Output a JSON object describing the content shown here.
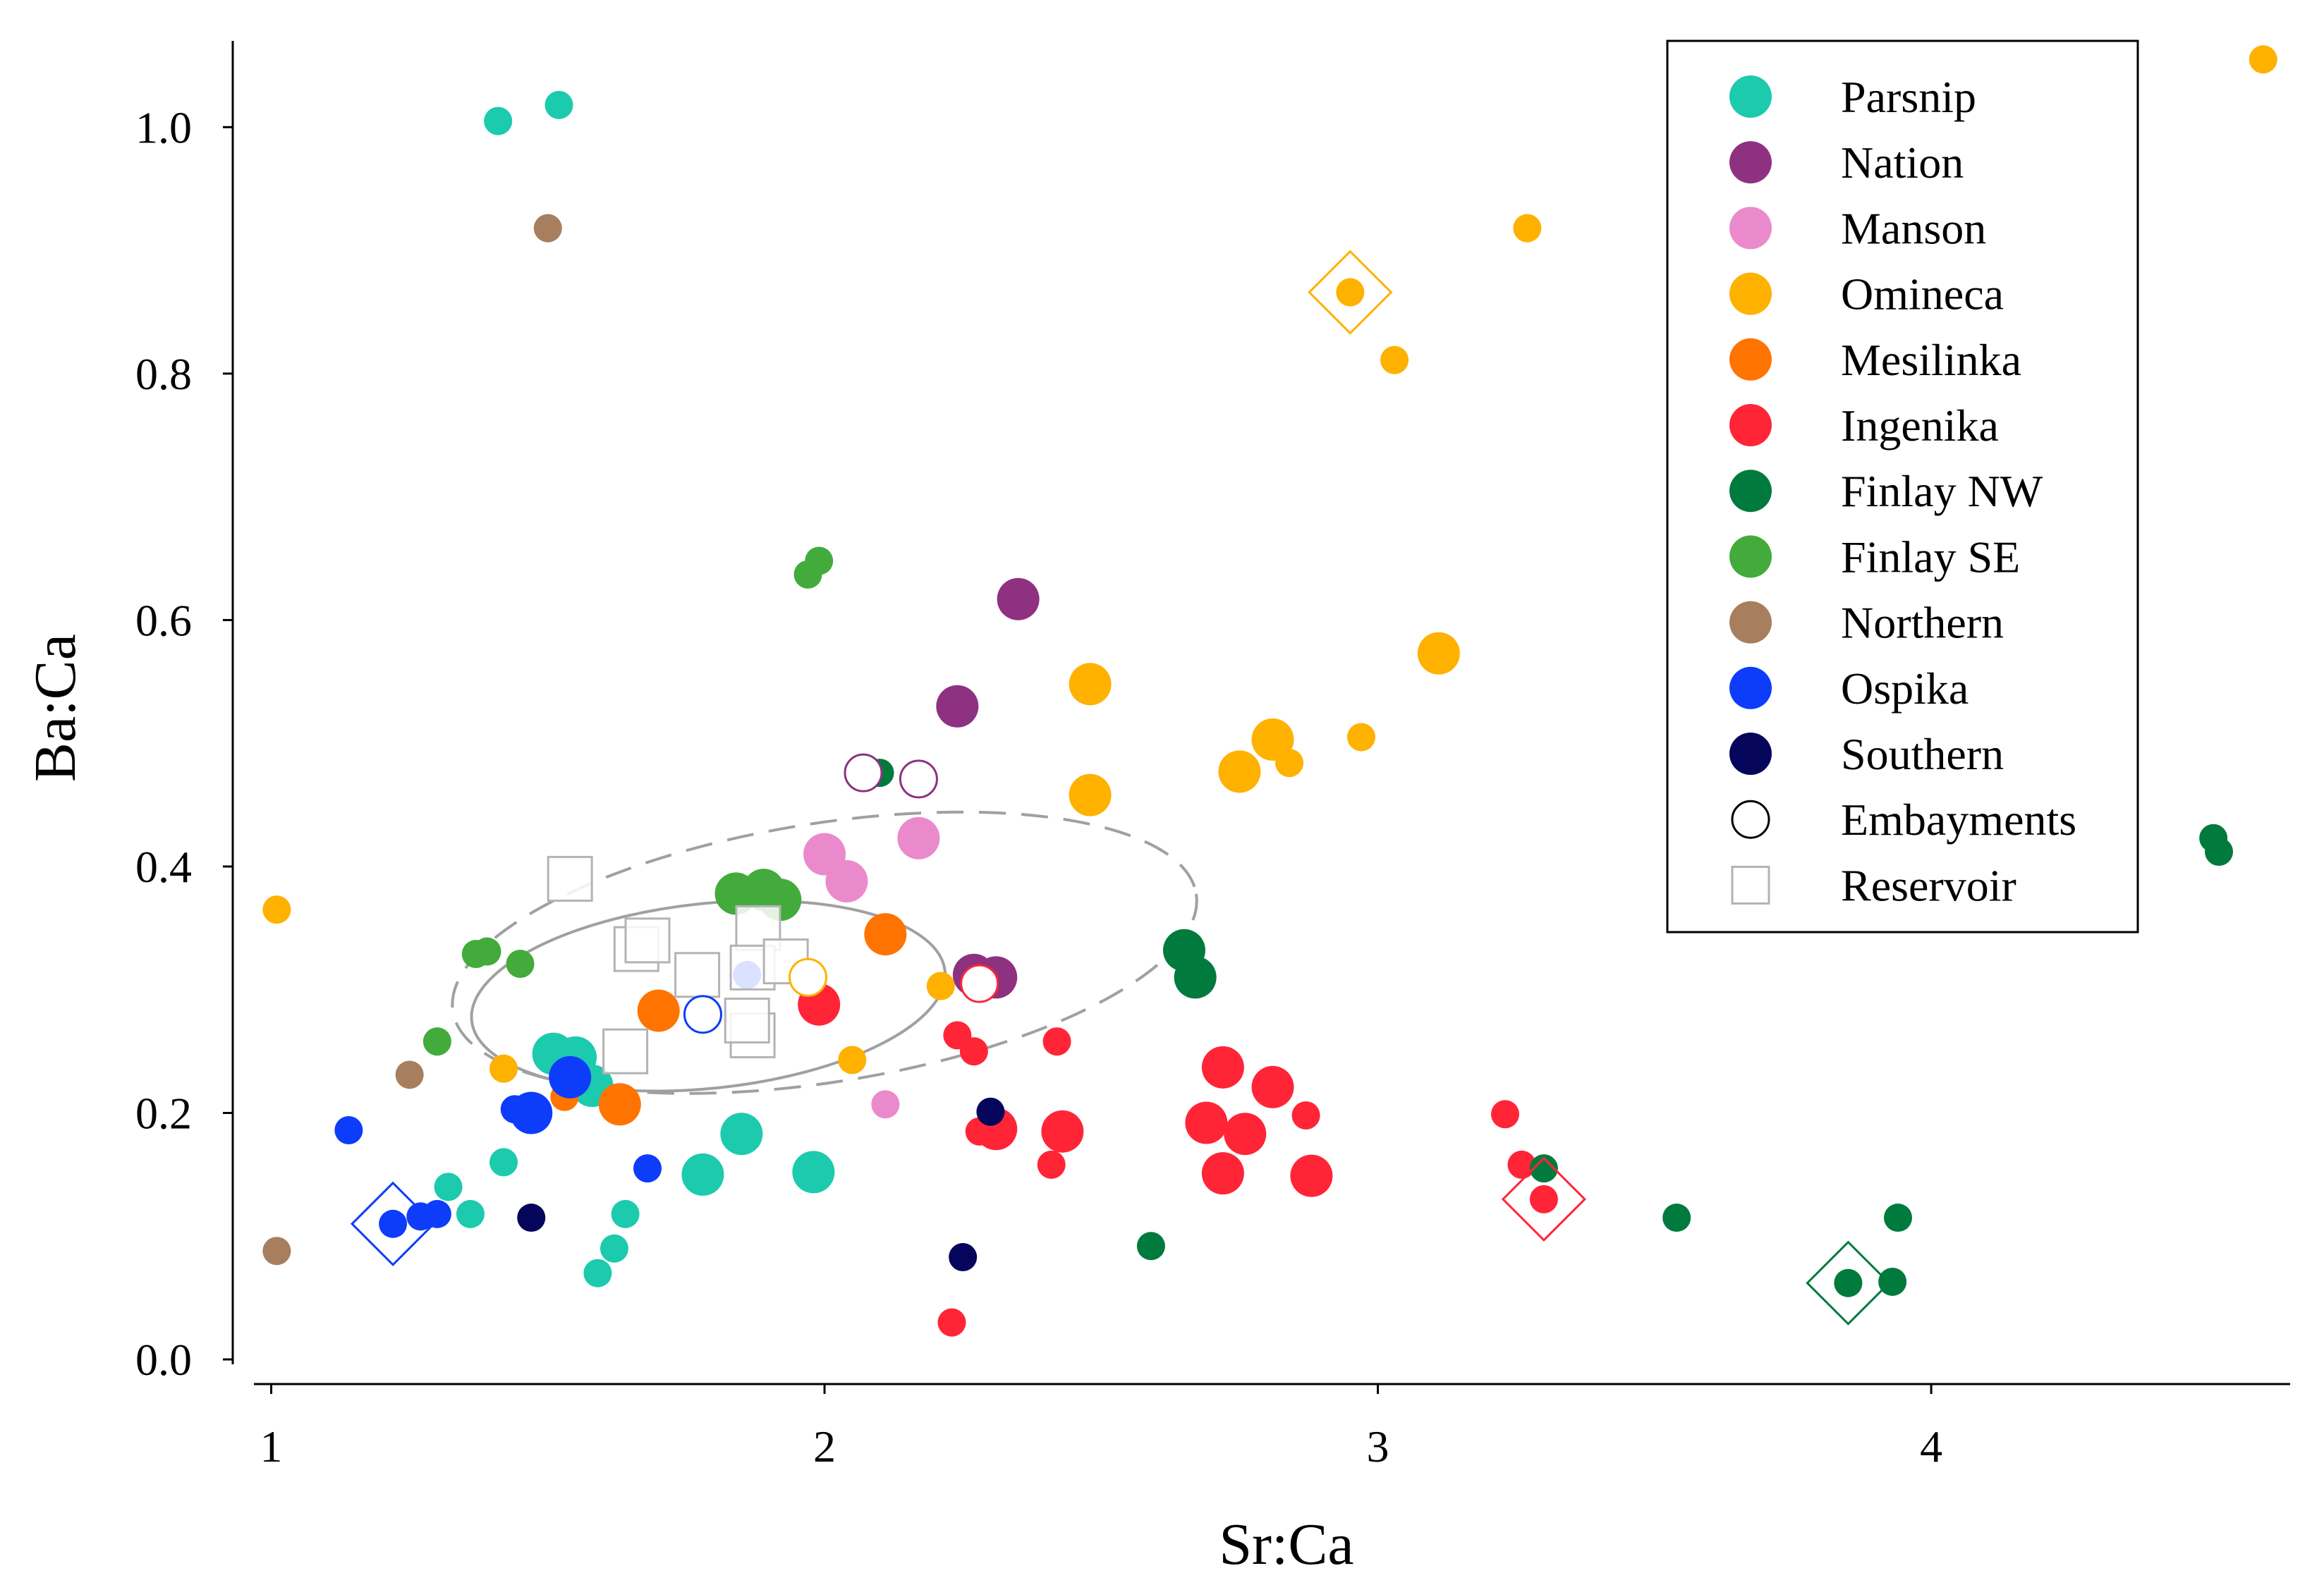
{
  "chart_data": {
    "type": "scatter",
    "xlabel": "Sr:Ca",
    "ylabel": "Ba:Ca",
    "xlim": [
      0.97,
      4.65
    ],
    "ylim": [
      -0.02,
      1.07
    ],
    "xticks": [
      1,
      2,
      3,
      4
    ],
    "yticks": [
      0.0,
      0.2,
      0.4,
      0.6,
      0.8,
      1.0
    ],
    "xtick_labels": [
      "1",
      "2",
      "3",
      "4"
    ],
    "ytick_labels": [
      "0.0",
      "0.2",
      "0.4",
      "0.6",
      "0.8",
      "1.0"
    ],
    "legend_position": "top-right",
    "series": [
      {
        "name": "Parsnip",
        "color": "#1ccaae",
        "points": [
          [
            1.41,
            1.005,
            "m"
          ],
          [
            1.52,
            1.018,
            "m"
          ],
          [
            1.51,
            0.248,
            "l"
          ],
          [
            1.55,
            0.245,
            "l"
          ],
          [
            1.58,
            0.222,
            "l"
          ],
          [
            1.42,
            0.16,
            "m"
          ],
          [
            1.32,
            0.14,
            "m"
          ],
          [
            1.36,
            0.118,
            "m"
          ],
          [
            1.64,
            0.118,
            "m"
          ],
          [
            1.62,
            0.09,
            "m"
          ],
          [
            1.59,
            0.07,
            "m"
          ],
          [
            1.78,
            0.15,
            "l"
          ],
          [
            1.85,
            0.183,
            "l"
          ],
          [
            1.98,
            0.152,
            "l"
          ]
        ]
      },
      {
        "name": "Nation",
        "color": "#8e3180",
        "points": [
          [
            2.35,
            0.617,
            "l"
          ],
          [
            2.24,
            0.53,
            "l"
          ],
          [
            2.27,
            0.312,
            "l"
          ],
          [
            2.31,
            0.31,
            "l"
          ]
        ]
      },
      {
        "name": "Manson",
        "color": "#eb89cd",
        "points": [
          [
            2.0,
            0.41,
            "l"
          ],
          [
            2.04,
            0.388,
            "l"
          ],
          [
            2.17,
            0.423,
            "l"
          ],
          [
            2.11,
            0.207,
            "m"
          ]
        ]
      },
      {
        "name": "Omineca",
        "color": "#ffb100",
        "points": [
          [
            4.6,
            1.055,
            "m"
          ],
          [
            3.27,
            0.918,
            "m"
          ],
          [
            2.95,
            0.866,
            "m"
          ],
          [
            3.03,
            0.811,
            "m"
          ],
          [
            3.11,
            0.573,
            "l"
          ],
          [
            2.48,
            0.548,
            "l"
          ],
          [
            2.97,
            0.505,
            "m"
          ],
          [
            2.81,
            0.503,
            "l"
          ],
          [
            2.84,
            0.484,
            "m"
          ],
          [
            2.75,
            0.477,
            "l"
          ],
          [
            2.48,
            0.458,
            "l"
          ],
          [
            1.01,
            0.365,
            "m"
          ],
          [
            2.21,
            0.303,
            "m"
          ],
          [
            1.42,
            0.236,
            "m"
          ],
          [
            2.05,
            0.243,
            "m"
          ]
        ]
      },
      {
        "name": "Mesilinka",
        "color": "#ff7300",
        "points": [
          [
            2.11,
            0.345,
            "l"
          ],
          [
            1.7,
            0.283,
            "l"
          ],
          [
            1.63,
            0.207,
            "l"
          ],
          [
            1.53,
            0.213,
            "m"
          ]
        ]
      },
      {
        "name": "Ingenika",
        "color": "#ff2537",
        "points": [
          [
            1.99,
            0.288,
            "l"
          ],
          [
            2.24,
            0.263,
            "m"
          ],
          [
            2.27,
            0.25,
            "m"
          ],
          [
            2.42,
            0.258,
            "m"
          ],
          [
            2.28,
            0.185,
            "m"
          ],
          [
            2.31,
            0.187,
            "l"
          ],
          [
            2.43,
            0.185,
            "l"
          ],
          [
            2.41,
            0.158,
            "m"
          ],
          [
            2.23,
            0.03,
            "m"
          ],
          [
            2.72,
            0.237,
            "l"
          ],
          [
            2.69,
            0.192,
            "l"
          ],
          [
            2.76,
            0.183,
            "l"
          ],
          [
            2.81,
            0.221,
            "l"
          ],
          [
            2.87,
            0.198,
            "m"
          ],
          [
            2.72,
            0.151,
            "l"
          ],
          [
            2.88,
            0.149,
            "l"
          ],
          [
            3.23,
            0.199,
            "m"
          ],
          [
            3.26,
            0.158,
            "m"
          ],
          [
            3.3,
            0.13,
            "m"
          ]
        ]
      },
      {
        "name": "Finlay NW",
        "color": "#007a3d",
        "points": [
          [
            2.1,
            0.476,
            "m"
          ],
          [
            2.65,
            0.332,
            "l"
          ],
          [
            2.67,
            0.31,
            "l"
          ],
          [
            2.59,
            0.092,
            "m"
          ],
          [
            3.3,
            0.155,
            "m"
          ],
          [
            3.54,
            0.115,
            "m"
          ],
          [
            3.85,
            0.062,
            "m"
          ],
          [
            3.93,
            0.063,
            "m"
          ],
          [
            3.94,
            0.115,
            "m"
          ],
          [
            4.51,
            0.423,
            "m"
          ],
          [
            4.52,
            0.412,
            "m"
          ]
        ]
      },
      {
        "name": "Finlay SE",
        "color": "#42ab3c",
        "points": [
          [
            1.99,
            0.648,
            "m"
          ],
          [
            1.97,
            0.637,
            "m"
          ],
          [
            1.84,
            0.378,
            "l"
          ],
          [
            1.89,
            0.381,
            "l"
          ],
          [
            1.92,
            0.373,
            "l"
          ],
          [
            1.37,
            0.329,
            "m"
          ],
          [
            1.39,
            0.331,
            "m"
          ],
          [
            1.45,
            0.321,
            "m"
          ],
          [
            1.3,
            0.258,
            "m"
          ]
        ]
      },
      {
        "name": "Northern",
        "color": "#a77f5f",
        "points": [
          [
            1.5,
            0.918,
            "m"
          ],
          [
            1.25,
            0.231,
            "m"
          ],
          [
            1.01,
            0.088,
            "m"
          ]
        ]
      },
      {
        "name": "Ospika",
        "color": "#0d3cfa",
        "points": [
          [
            1.14,
            0.186,
            "m"
          ],
          [
            1.22,
            0.11,
            "m"
          ],
          [
            1.27,
            0.116,
            "m"
          ],
          [
            1.3,
            0.118,
            "m"
          ],
          [
            1.44,
            0.203,
            "m"
          ],
          [
            1.47,
            0.2,
            "l"
          ],
          [
            1.54,
            0.229,
            "l"
          ],
          [
            1.68,
            0.155,
            "m"
          ],
          [
            1.86,
            0.312,
            "m"
          ]
        ]
      },
      {
        "name": "Southern",
        "color": "#04055b",
        "points": [
          [
            1.47,
            0.115,
            "m"
          ],
          [
            2.3,
            0.201,
            "m"
          ],
          [
            2.25,
            0.083,
            "m"
          ]
        ]
      }
    ],
    "embayments": {
      "label": "Embayments",
      "points": [
        [
          2.07,
          0.476,
          "#8e3180"
        ],
        [
          2.17,
          0.471,
          "#8e3180"
        ],
        [
          1.97,
          0.31,
          "#ffb100"
        ],
        [
          2.28,
          0.305,
          "#ff2537"
        ],
        [
          1.78,
          0.28,
          "#0d3cfa"
        ]
      ]
    },
    "reservoir": {
      "label": "Reservoir",
      "points": [
        [
          1.54,
          0.39
        ],
        [
          1.66,
          0.333
        ],
        [
          1.68,
          0.34
        ],
        [
          1.88,
          0.35
        ],
        [
          1.77,
          0.312
        ],
        [
          1.87,
          0.318
        ],
        [
          1.93,
          0.323
        ],
        [
          1.87,
          0.263
        ],
        [
          1.86,
          0.275
        ],
        [
          1.64,
          0.25
        ]
      ]
    },
    "highlighted": [
      {
        "x": 1.22,
        "y": 0.11,
        "color": "#0d3cfa"
      },
      {
        "x": 2.95,
        "y": 0.866,
        "color": "#ffb100"
      },
      {
        "x": 3.3,
        "y": 0.13,
        "color": "#ff2537"
      },
      {
        "x": 3.85,
        "y": 0.062,
        "color": "#007a3d"
      }
    ],
    "ellipses": [
      {
        "cx": 1.79,
        "cy": 0.295,
        "rx": 0.43,
        "ry": 0.075,
        "angle": -6,
        "style": "solid"
      },
      {
        "cx": 2.0,
        "cy": 0.33,
        "rx": 0.68,
        "ry": 0.105,
        "angle": -9,
        "style": "dashed"
      }
    ],
    "legend": [
      "Parsnip",
      "Nation",
      "Manson",
      "Omineca",
      "Mesilinka",
      "Ingenika",
      "Finlay NW",
      "Finlay SE",
      "Northern",
      "Ospika",
      "Southern",
      "Embayments",
      "Reservoir"
    ]
  }
}
